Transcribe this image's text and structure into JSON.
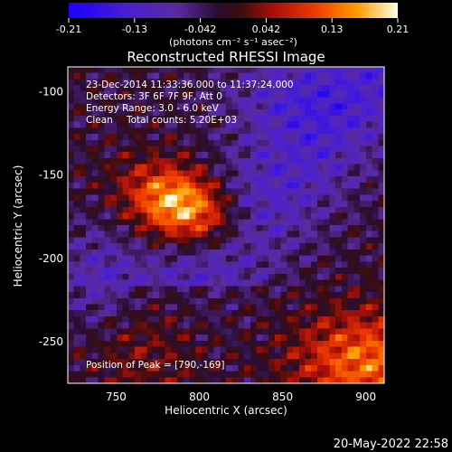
{
  "chart_data": {
    "type": "heatmap",
    "title": "Reconstructed RHESSI Image",
    "xlabel": "Heliocentric X (arcsec)",
    "ylabel": "Heliocentric Y (arcsec)",
    "xlim": [
      721,
      911
    ],
    "ylim": [
      -275,
      -85
    ],
    "xticks": [
      750,
      800,
      850,
      900
    ],
    "yticks": [
      -100,
      -150,
      -200,
      -250
    ],
    "colorbar": {
      "min": -0.21,
      "max": 0.21,
      "ticks": [
        "-0.21",
        "-0.13",
        "-0.042",
        "0.042",
        "0.13",
        "0.21"
      ],
      "unit_label": "(photons cm⁻² s⁻¹ asec⁻²)"
    },
    "annotations": {
      "time_range": "23-Dec-2014 11:33:36.000 to 11:37:24.000",
      "detectors": "Detectors: 3F 6F 7F 9F, Att 0",
      "energy_range": "Energy Range: 3.0 - 6.0 keV",
      "method": "Clean",
      "total_counts": "Total counts: 5.20E+03",
      "peak_position": "Position of Peak = [790,-169]"
    },
    "peak": {
      "x": 790,
      "y": -169
    },
    "grid": false
  },
  "footer": {
    "timestamp": "20-May-2022 22:58"
  },
  "colors": {
    "background": "#000000",
    "text": "#ffffff"
  }
}
